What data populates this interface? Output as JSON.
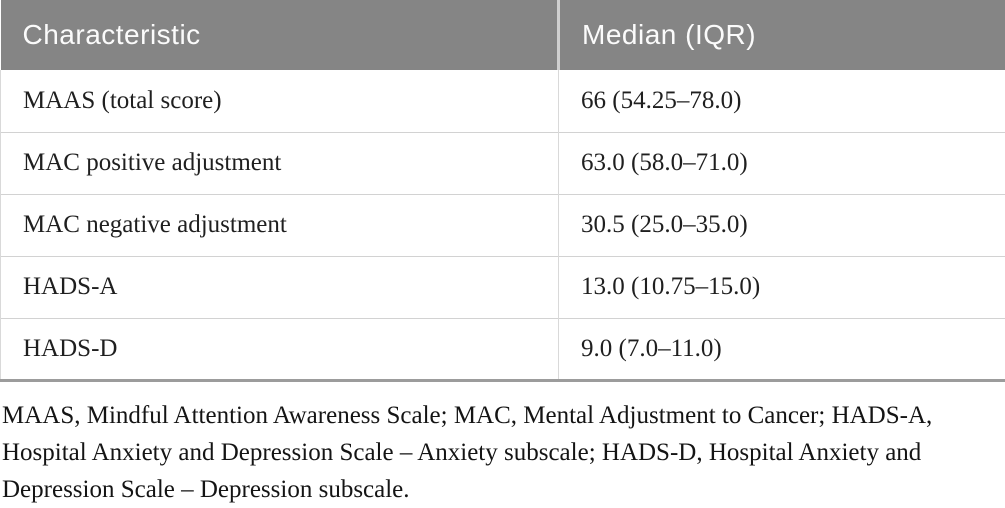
{
  "colors": {
    "header_bg": "#858585",
    "header_text": "#fbfbfb",
    "row_divider": "#d2d2d2",
    "table_bottom_border": "#9c9c9c",
    "body_text": "#1f1f1f"
  },
  "table": {
    "columns": [
      "Characteristic",
      "Median (IQR)"
    ],
    "rows": [
      {
        "characteristic": "MAAS (total score)",
        "median": "66 (54.25–78.0)"
      },
      {
        "characteristic": "MAC positive adjustment",
        "median": "63.0 (58.0–71.0)"
      },
      {
        "characteristic": "MAC negative adjustment",
        "median": "30.5 (25.0–35.0)"
      },
      {
        "characteristic": "HADS-A",
        "median": "13.0 (10.75–15.0)"
      },
      {
        "characteristic": "HADS-D",
        "median": "9.0 (7.0–11.0)"
      }
    ]
  },
  "footnote": "MAAS, Mindful Attention Awareness Scale; MAC, Mental Adjustment to Cancer; HADS-A, Hospital Anxiety and Depression Scale – Anxiety subscale; HADS-D, Hospital Anxiety and Depression Scale – Depression subscale."
}
